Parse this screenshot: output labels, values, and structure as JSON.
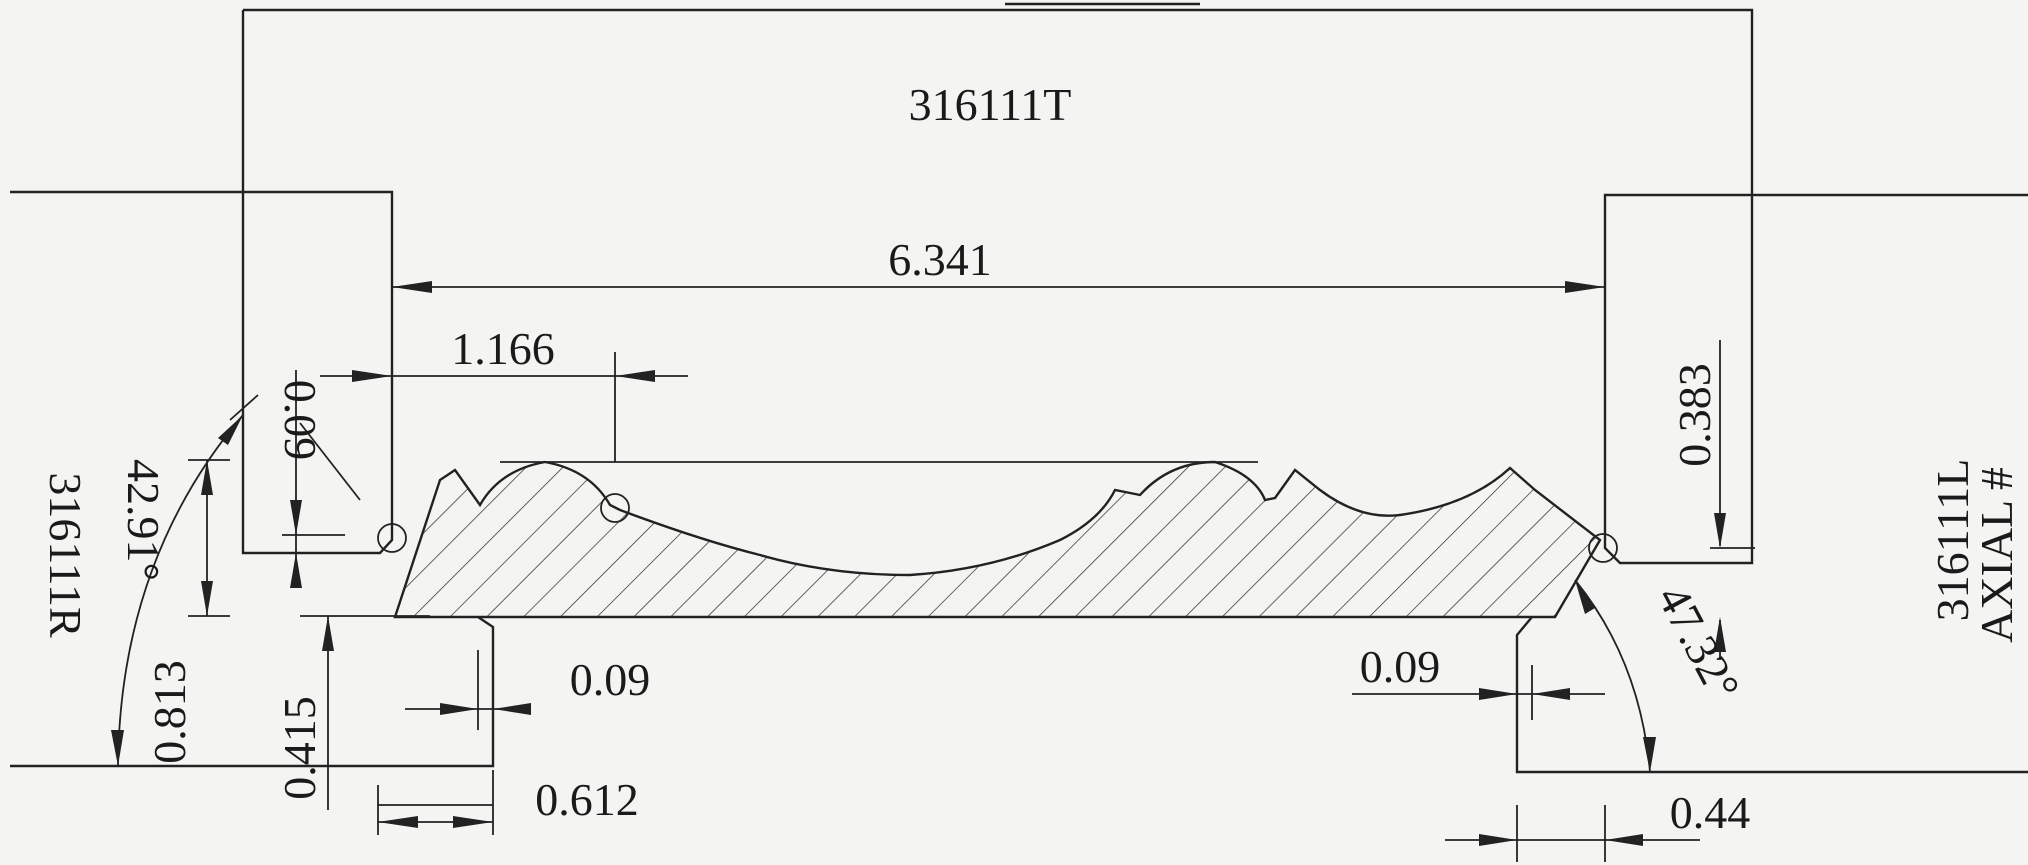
{
  "labels": {
    "top_part": "316111T",
    "right_part": "316111L",
    "right_axial": "AXIAL #",
    "left_part": "316111R"
  },
  "dimensions": {
    "overall_width": "6.341",
    "offset_left": "1.166",
    "left_chamfer_height": "0.09",
    "left_angle": "42.91°",
    "left_height_total": "0.813",
    "left_height_lower": "0.415",
    "left_chamfer_width": "0.09",
    "left_base_width": "0.612",
    "right_height": "0.383",
    "right_chamfer_width": "0.09",
    "right_angle": "47.32°",
    "right_base_width": "0.44"
  }
}
